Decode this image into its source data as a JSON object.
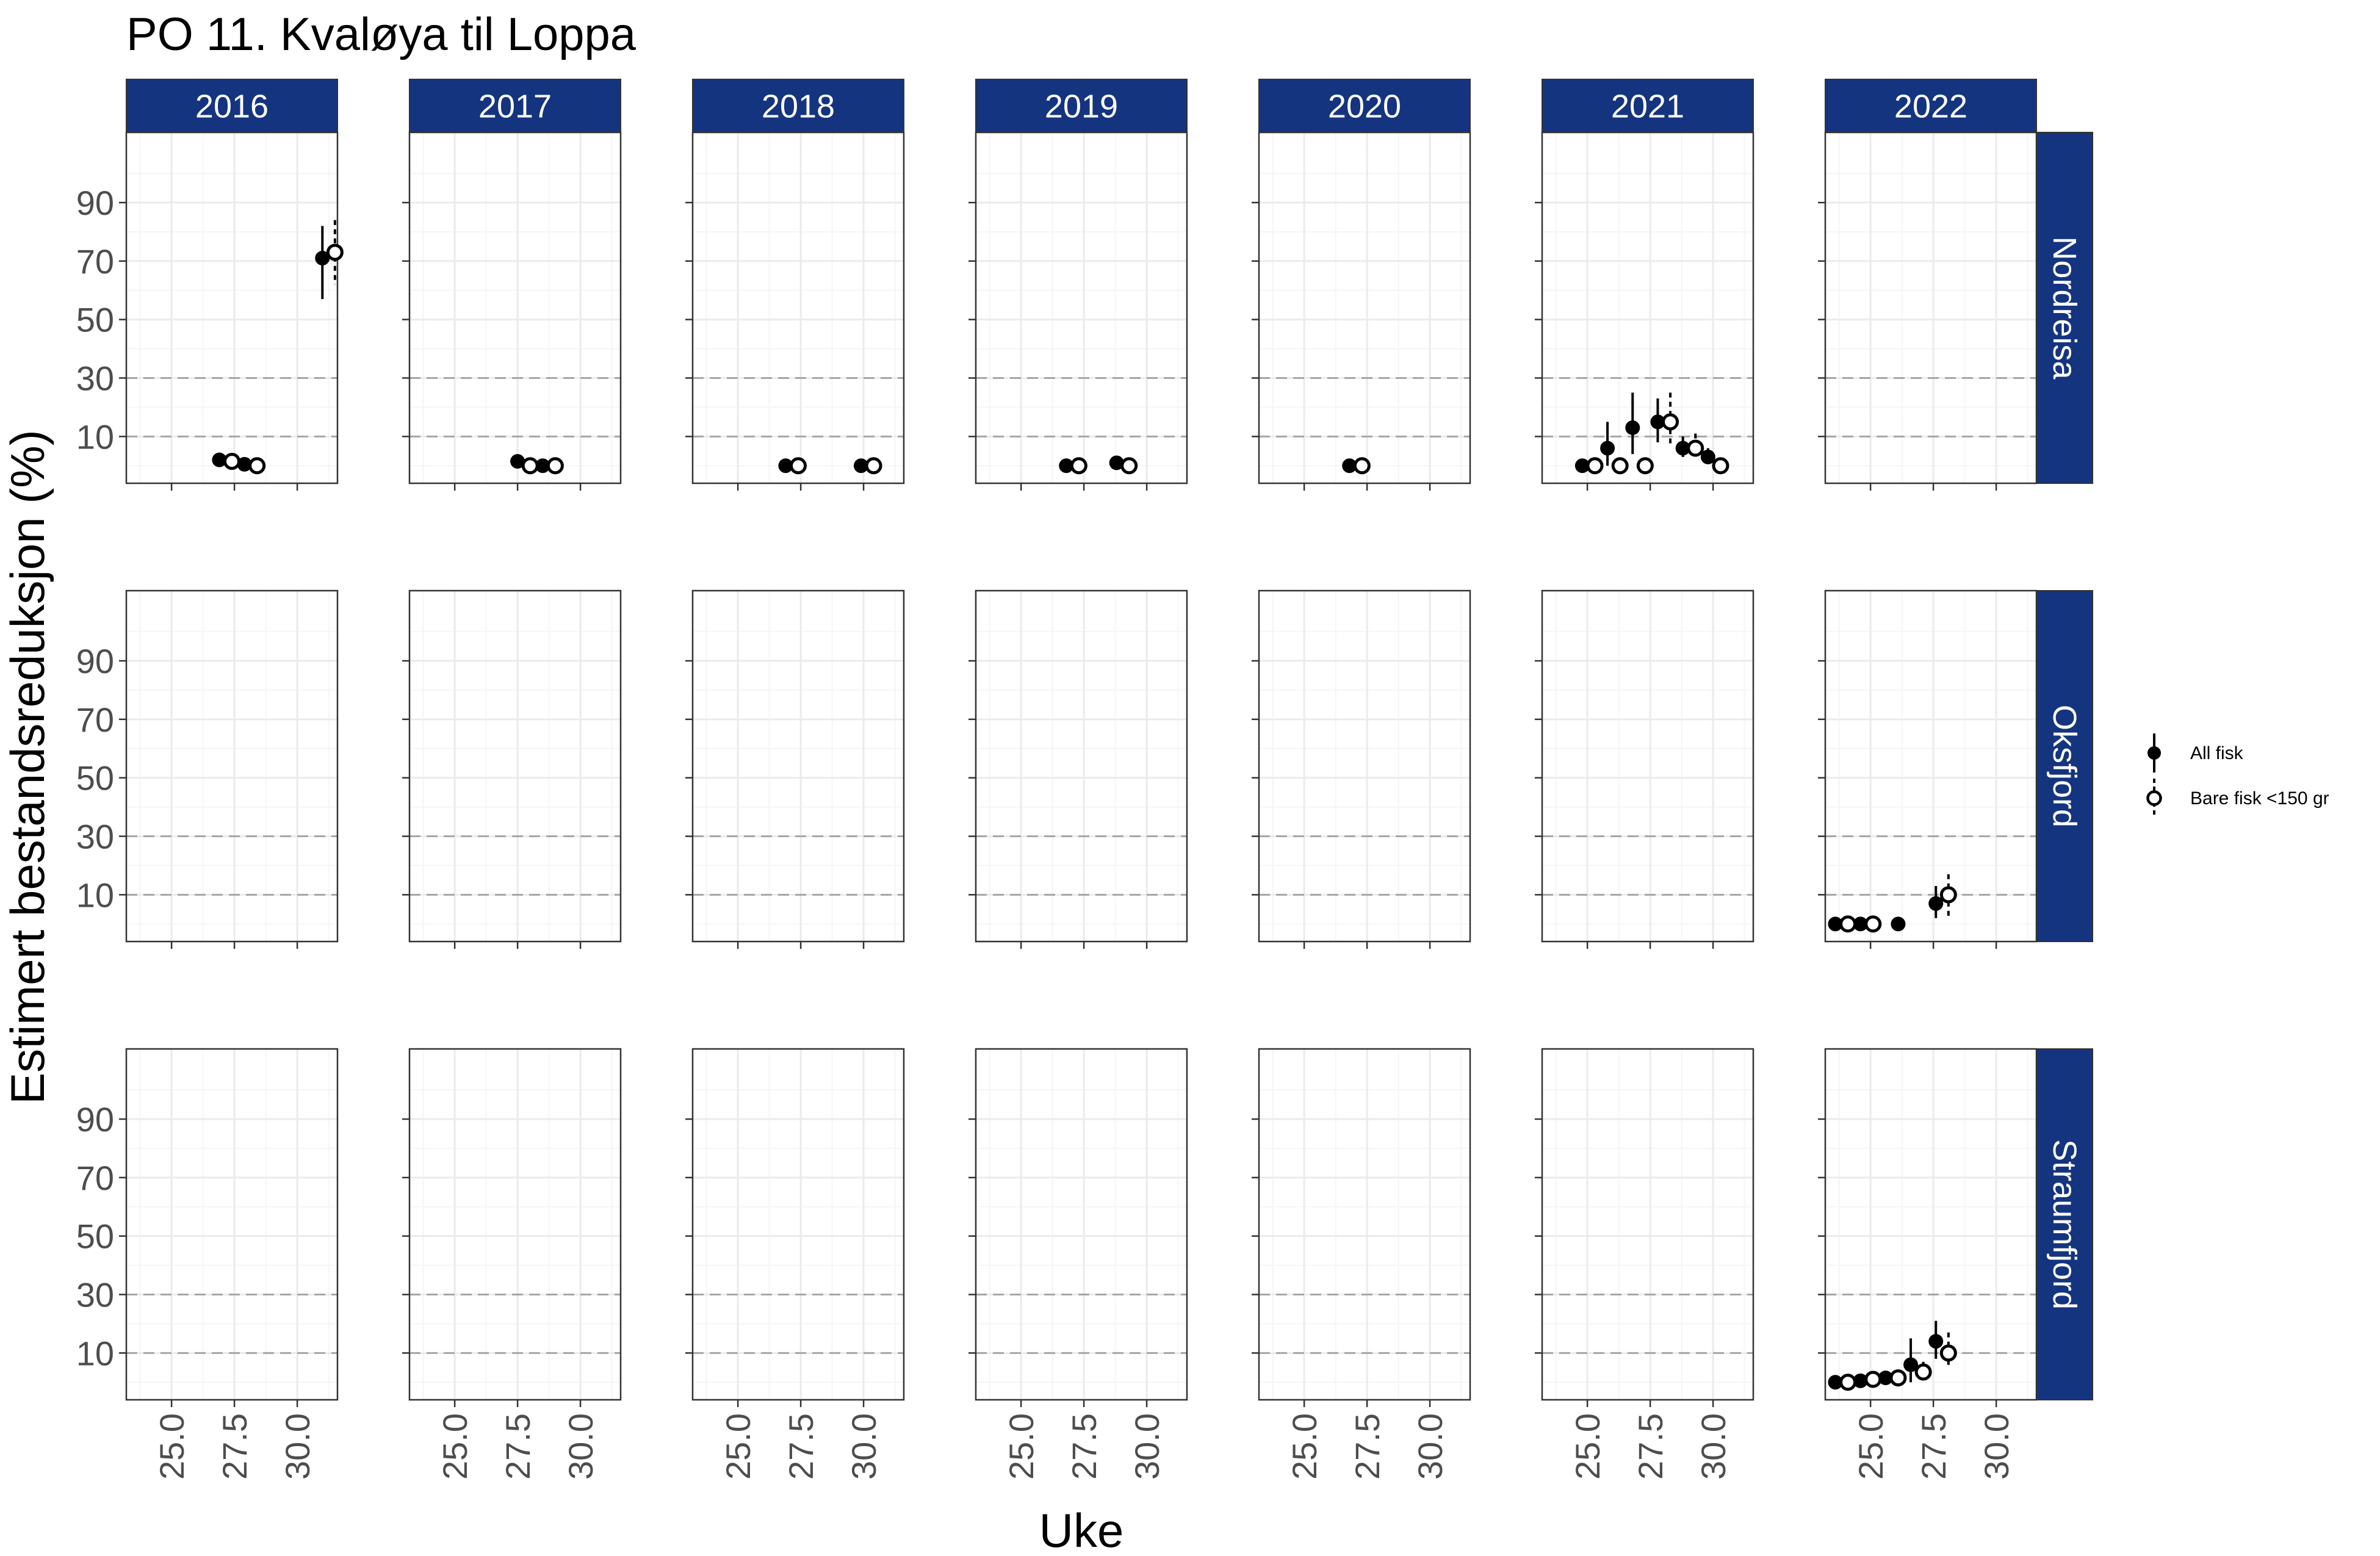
{
  "chart_data": {
    "type": "scatter",
    "title": "PO 11. Kvaløya til Loppa",
    "xlabel": "Uke",
    "ylabel": "Estimert bestandsreduksjon (%)",
    "xlim": [
      23.2,
      31.6
    ],
    "ylim": [
      -6,
      114
    ],
    "x_ticks": [
      "25.0",
      "27.5",
      "30.0"
    ],
    "x_tick_values": [
      25.0,
      27.5,
      30.0
    ],
    "y_ticks": [
      "10",
      "30",
      "50",
      "70",
      "90"
    ],
    "y_tick_values": [
      10,
      30,
      50,
      70,
      90
    ],
    "reference_lines": [
      10,
      30
    ],
    "grid": true,
    "years": [
      "2016",
      "2017",
      "2018",
      "2019",
      "2020",
      "2021",
      "2022"
    ],
    "rivers": [
      "Nordreisa",
      "Oksfjord",
      "Straumfjord"
    ],
    "legend": {
      "placement": "right",
      "entries": [
        {
          "key": "all",
          "label": "All fisk"
        },
        {
          "key": "small",
          "label": "Bare fisk <150 gr"
        }
      ]
    },
    "colors": {
      "strip": "#15347f",
      "strip_text": "#ffffff",
      "refline": "#a6a6a6",
      "grid_major": "#ebebeb",
      "grid_minor": "#f5f5f5",
      "panel_border": "#333333",
      "point": "#000000"
    },
    "series": [
      {
        "river": "Nordreisa",
        "year": "2016",
        "type": "all",
        "points": [
          {
            "x": 26.9,
            "y": 2
          },
          {
            "x": 27.9,
            "y": 0.5
          },
          {
            "x": 31.0,
            "y": 71,
            "lo": 57,
            "hi": 82
          }
        ]
      },
      {
        "river": "Nordreisa",
        "year": "2016",
        "type": "small",
        "points": [
          {
            "x": 27.4,
            "y": 1.5
          },
          {
            "x": 28.4,
            "y": 0
          },
          {
            "x": 31.5,
            "y": 73,
            "lo": 62,
            "hi": 84
          }
        ]
      },
      {
        "river": "Nordreisa",
        "year": "2017",
        "type": "all",
        "points": [
          {
            "x": 27.5,
            "y": 1.5
          },
          {
            "x": 28.5,
            "y": 0
          }
        ]
      },
      {
        "river": "Nordreisa",
        "year": "2017",
        "type": "small",
        "points": [
          {
            "x": 28.0,
            "y": 0
          },
          {
            "x": 29.0,
            "y": 0
          }
        ]
      },
      {
        "river": "Nordreisa",
        "year": "2018",
        "type": "all",
        "points": [
          {
            "x": 26.9,
            "y": 0
          },
          {
            "x": 29.9,
            "y": 0
          }
        ]
      },
      {
        "river": "Nordreisa",
        "year": "2018",
        "type": "small",
        "points": [
          {
            "x": 27.4,
            "y": 0
          },
          {
            "x": 30.4,
            "y": 0
          }
        ]
      },
      {
        "river": "Nordreisa",
        "year": "2019",
        "type": "all",
        "points": [
          {
            "x": 26.8,
            "y": 0
          },
          {
            "x": 28.8,
            "y": 1
          }
        ]
      },
      {
        "river": "Nordreisa",
        "year": "2019",
        "type": "small",
        "points": [
          {
            "x": 27.3,
            "y": 0
          },
          {
            "x": 29.3,
            "y": 0
          }
        ]
      },
      {
        "river": "Nordreisa",
        "year": "2020",
        "type": "all",
        "points": [
          {
            "x": 26.8,
            "y": 0
          }
        ]
      },
      {
        "river": "Nordreisa",
        "year": "2020",
        "type": "small",
        "points": [
          {
            "x": 27.3,
            "y": 0
          }
        ]
      },
      {
        "river": "Nordreisa",
        "year": "2021",
        "type": "all",
        "points": [
          {
            "x": 24.8,
            "y": 0
          },
          {
            "x": 25.8,
            "y": 6,
            "lo": 0,
            "hi": 15
          },
          {
            "x": 26.8,
            "y": 13,
            "lo": 4,
            "hi": 25
          },
          {
            "x": 27.8,
            "y": 15,
            "lo": 8,
            "hi": 23
          },
          {
            "x": 28.8,
            "y": 6,
            "lo": 3,
            "hi": 10
          },
          {
            "x": 29.8,
            "y": 3,
            "lo": 1,
            "hi": 6
          }
        ]
      },
      {
        "river": "Nordreisa",
        "year": "2021",
        "type": "small",
        "points": [
          {
            "x": 25.3,
            "y": 0
          },
          {
            "x": 26.3,
            "y": 0
          },
          {
            "x": 27.3,
            "y": 0
          },
          {
            "x": 28.3,
            "y": 15,
            "lo": 7,
            "hi": 25
          },
          {
            "x": 29.3,
            "y": 6,
            "lo": 3,
            "hi": 11
          },
          {
            "x": 30.3,
            "y": 0
          }
        ]
      },
      {
        "river": "Oksfjord",
        "year": "2022",
        "type": "all",
        "points": [
          {
            "x": 23.6,
            "y": 0
          },
          {
            "x": 24.6,
            "y": 0
          },
          {
            "x": 26.1,
            "y": 0
          },
          {
            "x": 27.6,
            "y": 7,
            "lo": 2,
            "hi": 13
          }
        ]
      },
      {
        "river": "Oksfjord",
        "year": "2022",
        "type": "small",
        "points": [
          {
            "x": 24.1,
            "y": 0
          },
          {
            "x": 25.1,
            "y": 0
          },
          {
            "x": 28.1,
            "y": 10,
            "lo": 2,
            "hi": 17
          }
        ]
      },
      {
        "river": "Straumfjord",
        "year": "2022",
        "type": "all",
        "points": [
          {
            "x": 23.6,
            "y": 0
          },
          {
            "x": 24.6,
            "y": 0.5
          },
          {
            "x": 25.6,
            "y": 1.5
          },
          {
            "x": 26.6,
            "y": 6,
            "lo": 0,
            "hi": 15
          },
          {
            "x": 27.6,
            "y": 14,
            "lo": 8,
            "hi": 21
          }
        ]
      },
      {
        "river": "Straumfjord",
        "year": "2022",
        "type": "small",
        "points": [
          {
            "x": 24.1,
            "y": 0
          },
          {
            "x": 25.1,
            "y": 1
          },
          {
            "x": 26.1,
            "y": 1.5
          },
          {
            "x": 27.1,
            "y": 3.5,
            "lo": 1,
            "hi": 7
          },
          {
            "x": 28.1,
            "y": 10,
            "lo": 5,
            "hi": 17
          }
        ]
      }
    ]
  }
}
